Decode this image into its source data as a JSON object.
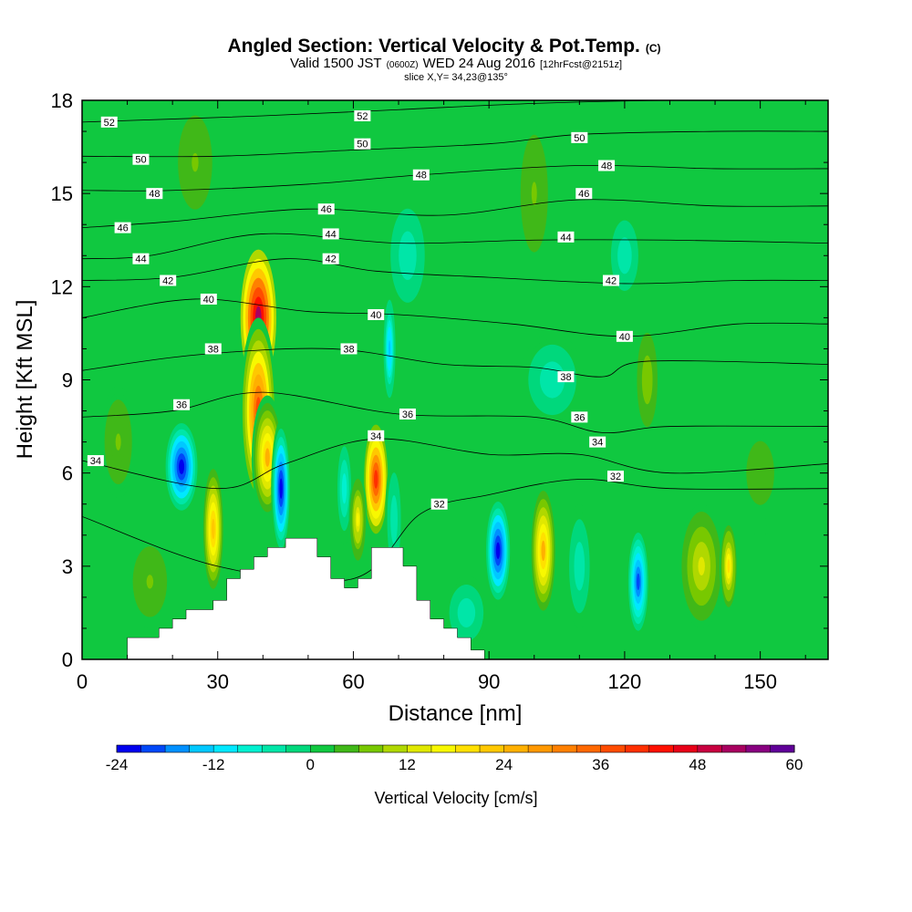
{
  "title": {
    "main": "Angled Section: Vertical Velocity & Pot.Temp.",
    "main_unit": "(C)",
    "valid_a": "Valid 1500 JST",
    "valid_z": "(0600Z)",
    "valid_b": "WED 24 Aug 2016",
    "fcst": "[12hrFcst@2151z]",
    "slice": "slice X,Y= 34,23@135°"
  },
  "chart_data": {
    "type": "heatmap",
    "xlabel": "Distance [nm]",
    "ylabel": "Height [Kft MSL]",
    "xlim": [
      0,
      165
    ],
    "ylim": [
      0,
      18
    ],
    "x_ticks": [
      0,
      30,
      60,
      90,
      120,
      150
    ],
    "y_ticks": [
      0,
      3,
      6,
      9,
      12,
      15,
      18
    ],
    "colorbar": {
      "label": "Vertical Velocity [cm/s]",
      "ticks": [
        -24,
        -12,
        0,
        12,
        24,
        36,
        48,
        60
      ],
      "bounds": [
        -24,
        -21,
        -18,
        -15,
        -12,
        -9,
        -6,
        -3,
        0,
        3,
        6,
        9,
        12,
        15,
        18,
        21,
        24,
        27,
        30,
        33,
        36,
        39,
        42,
        45,
        48,
        51,
        54,
        57,
        60
      ],
      "colors": [
        "#0000ee",
        "#0048f8",
        "#0090ff",
        "#00c8ff",
        "#00e8ff",
        "#00f0d0",
        "#00e6a8",
        "#00d87c",
        "#10c840",
        "#40b818",
        "#78c800",
        "#b0d800",
        "#e0e800",
        "#f8f800",
        "#ffe000",
        "#ffc800",
        "#ffb000",
        "#ff9800",
        "#ff8000",
        "#ff6800",
        "#ff4c00",
        "#ff3000",
        "#ff1000",
        "#e80018",
        "#c80040",
        "#a80060",
        "#880080",
        "#600098"
      ]
    },
    "background_value": 2,
    "vertical_velocity_cells": [
      {
        "x": 22,
        "y": 6.2,
        "value": -24,
        "half_width": 4,
        "half_height": 1.6
      },
      {
        "x": 29,
        "y": 4.2,
        "value": 21,
        "half_width": 2.5,
        "half_height": 2.2
      },
      {
        "x": 39,
        "y": 11,
        "value": 51,
        "half_width": 4.5,
        "half_height": 2.5
      },
      {
        "x": 39,
        "y": 8,
        "value": 36,
        "half_width": 4,
        "half_height": 3
      },
      {
        "x": 41,
        "y": 6.5,
        "value": 24,
        "half_width": 3.5,
        "half_height": 2
      },
      {
        "x": 44,
        "y": 5.5,
        "value": -24,
        "half_width": 2.2,
        "half_height": 2.2
      },
      {
        "x": 58,
        "y": 5.5,
        "value": -9,
        "half_width": 2,
        "half_height": 1.8
      },
      {
        "x": 65,
        "y": 5.8,
        "value": 39,
        "half_width": 3,
        "half_height": 2
      },
      {
        "x": 61,
        "y": 4.5,
        "value": 15,
        "half_width": 2,
        "half_height": 1.5
      },
      {
        "x": 68,
        "y": 10,
        "value": -14,
        "half_width": 1.5,
        "half_height": 1.8
      },
      {
        "x": 69,
        "y": 4.5,
        "value": -6,
        "half_width": 2,
        "half_height": 2
      },
      {
        "x": 92,
        "y": 3.5,
        "value": -24,
        "half_width": 3,
        "half_height": 1.8
      },
      {
        "x": 102,
        "y": 3.5,
        "value": 24,
        "half_width": 3,
        "half_height": 2.2
      },
      {
        "x": 110,
        "y": 3,
        "value": -6,
        "half_width": 3,
        "half_height": 2
      },
      {
        "x": 123,
        "y": 2.5,
        "value": -20,
        "half_width": 2.5,
        "half_height": 1.8
      },
      {
        "x": 137,
        "y": 3,
        "value": 12,
        "half_width": 5,
        "half_height": 2
      },
      {
        "x": 143,
        "y": 3,
        "value": 18,
        "half_width": 2,
        "half_height": 1.5
      },
      {
        "x": 85,
        "y": 1.5,
        "value": -6,
        "half_width": 5,
        "half_height": 1.2
      },
      {
        "x": 104,
        "y": 9,
        "value": -6,
        "half_width": 7,
        "half_height": 1.5
      },
      {
        "x": 120,
        "y": 13,
        "value": -6,
        "half_width": 4,
        "half_height": 1.5
      },
      {
        "x": 72,
        "y": 13,
        "value": -6,
        "half_width": 5,
        "half_height": 2
      },
      {
        "x": 100,
        "y": 15,
        "value": 6,
        "half_width": 4,
        "half_height": 2.5
      },
      {
        "x": 25,
        "y": 16,
        "value": 6,
        "half_width": 5,
        "half_height": 2
      },
      {
        "x": 125,
        "y": 9,
        "value": 8,
        "half_width": 3,
        "half_height": 2
      },
      {
        "x": 15,
        "y": 2.5,
        "value": 6,
        "half_width": 5,
        "half_height": 1.5
      },
      {
        "x": 8,
        "y": 7,
        "value": 6,
        "half_width": 4,
        "half_height": 1.8
      },
      {
        "x": 150,
        "y": 6,
        "value": 4,
        "half_width": 6,
        "half_height": 2
      }
    ],
    "terrain": [
      [
        10,
        0
      ],
      [
        10,
        0.7
      ],
      [
        17,
        0.7
      ],
      [
        17,
        1.0
      ],
      [
        20,
        1.0
      ],
      [
        20,
        1.3
      ],
      [
        23,
        1.3
      ],
      [
        23,
        1.6
      ],
      [
        29,
        1.6
      ],
      [
        29,
        1.9
      ],
      [
        32,
        1.9
      ],
      [
        32,
        2.6
      ],
      [
        35,
        2.6
      ],
      [
        35,
        2.9
      ],
      [
        38,
        2.9
      ],
      [
        38,
        3.3
      ],
      [
        41,
        3.3
      ],
      [
        41,
        3.6
      ],
      [
        45,
        3.6
      ],
      [
        45,
        3.9
      ],
      [
        52,
        3.9
      ],
      [
        52,
        3.3
      ],
      [
        55,
        3.3
      ],
      [
        55,
        2.6
      ],
      [
        58,
        2.6
      ],
      [
        58,
        2.3
      ],
      [
        61,
        2.3
      ],
      [
        61,
        2.6
      ],
      [
        64,
        2.6
      ],
      [
        64,
        3.6
      ],
      [
        71,
        3.6
      ],
      [
        71,
        3.0
      ],
      [
        74,
        3.0
      ],
      [
        74,
        1.9
      ],
      [
        77,
        1.9
      ],
      [
        77,
        1.3
      ],
      [
        80,
        1.3
      ],
      [
        80,
        1.0
      ],
      [
        83,
        1.0
      ],
      [
        83,
        0.7
      ],
      [
        86,
        0.7
      ],
      [
        86,
        0.3
      ],
      [
        89,
        0.3
      ],
      [
        89,
        0
      ]
    ],
    "theta_contours": [
      {
        "level": 32,
        "points": [
          [
            0,
            4.6
          ],
          [
            30,
            3.0
          ],
          [
            60,
            2.6
          ],
          [
            75,
            4.7
          ],
          [
            90,
            5.3
          ],
          [
            110,
            5.8
          ],
          [
            130,
            5.5
          ],
          [
            165,
            5.5
          ]
        ]
      },
      {
        "level": 34,
        "points": [
          [
            0,
            6.4
          ],
          [
            30,
            5.5
          ],
          [
            45,
            6.3
          ],
          [
            65,
            7.1
          ],
          [
            90,
            6.6
          ],
          [
            110,
            6.6
          ],
          [
            130,
            6.0
          ],
          [
            165,
            6.3
          ]
        ]
      },
      {
        "level": 36,
        "points": [
          [
            0,
            7.8
          ],
          [
            20,
            8.0
          ],
          [
            40,
            8.6
          ],
          [
            70,
            7.9
          ],
          [
            100,
            7.8
          ],
          [
            115,
            7.3
          ],
          [
            130,
            7.5
          ],
          [
            165,
            7.5
          ]
        ]
      },
      {
        "level": 38,
        "points": [
          [
            0,
            9.3
          ],
          [
            25,
            9.8
          ],
          [
            55,
            10.0
          ],
          [
            80,
            9.5
          ],
          [
            100,
            9.4
          ],
          [
            115,
            9.1
          ],
          [
            125,
            9.6
          ],
          [
            165,
            9.5
          ]
        ]
      },
      {
        "level": 40,
        "points": [
          [
            0,
            11.0
          ],
          [
            25,
            11.6
          ],
          [
            50,
            11.2
          ],
          [
            70,
            11.1
          ],
          [
            95,
            10.8
          ],
          [
            120,
            10.4
          ],
          [
            145,
            10.8
          ],
          [
            165,
            10.8
          ]
        ]
      },
      {
        "level": 42,
        "points": [
          [
            0,
            12.2
          ],
          [
            20,
            12.3
          ],
          [
            45,
            12.9
          ],
          [
            65,
            12.5
          ],
          [
            90,
            12.3
          ],
          [
            120,
            12.1
          ],
          [
            145,
            12.2
          ],
          [
            165,
            12.2
          ]
        ]
      },
      {
        "level": 44,
        "points": [
          [
            0,
            12.9
          ],
          [
            15,
            13.0
          ],
          [
            40,
            13.7
          ],
          [
            70,
            13.4
          ],
          [
            100,
            13.5
          ],
          [
            130,
            13.5
          ],
          [
            165,
            13.4
          ]
        ]
      },
      {
        "level": 46,
        "points": [
          [
            0,
            13.9
          ],
          [
            20,
            14.1
          ],
          [
            50,
            14.5
          ],
          [
            80,
            14.3
          ],
          [
            110,
            14.8
          ],
          [
            140,
            14.6
          ],
          [
            165,
            14.6
          ]
        ]
      },
      {
        "level": 48,
        "points": [
          [
            0,
            15.1
          ],
          [
            20,
            15.1
          ],
          [
            50,
            15.3
          ],
          [
            75,
            15.6
          ],
          [
            110,
            15.9
          ],
          [
            140,
            15.8
          ],
          [
            165,
            15.8
          ]
        ]
      },
      {
        "level": 50,
        "points": [
          [
            0,
            16.2
          ],
          [
            30,
            16.2
          ],
          [
            60,
            16.4
          ],
          [
            90,
            16.6
          ],
          [
            110,
            16.9
          ],
          [
            140,
            17.0
          ],
          [
            165,
            17.0
          ]
        ]
      },
      {
        "level": 52,
        "points": [
          [
            0,
            17.3
          ],
          [
            40,
            17.5
          ],
          [
            70,
            17.7
          ],
          [
            100,
            17.9
          ],
          [
            130,
            18.0
          ],
          [
            165,
            18.0
          ]
        ]
      }
    ],
    "contour_labels": [
      {
        "text": "52",
        "x": 6,
        "y": 17.3
      },
      {
        "text": "52",
        "x": 62,
        "y": 17.5
      },
      {
        "text": "50",
        "x": 13,
        "y": 16.1
      },
      {
        "text": "50",
        "x": 62,
        "y": 16.6
      },
      {
        "text": "50",
        "x": 110,
        "y": 16.8
      },
      {
        "text": "48",
        "x": 16,
        "y": 15.0
      },
      {
        "text": "48",
        "x": 75,
        "y": 15.6
      },
      {
        "text": "48",
        "x": 116,
        "y": 15.9
      },
      {
        "text": "46",
        "x": 9,
        "y": 13.9
      },
      {
        "text": "46",
        "x": 54,
        "y": 14.5
      },
      {
        "text": "46",
        "x": 111,
        "y": 15.0
      },
      {
        "text": "44",
        "x": 13,
        "y": 12.9
      },
      {
        "text": "44",
        "x": 55,
        "y": 13.7
      },
      {
        "text": "44",
        "x": 107,
        "y": 13.6
      },
      {
        "text": "42",
        "x": 19,
        "y": 12.2
      },
      {
        "text": "42",
        "x": 55,
        "y": 12.9
      },
      {
        "text": "42",
        "x": 117,
        "y": 12.2
      },
      {
        "text": "40",
        "x": 28,
        "y": 11.6
      },
      {
        "text": "40",
        "x": 65,
        "y": 11.1
      },
      {
        "text": "40",
        "x": 120,
        "y": 10.4
      },
      {
        "text": "38",
        "x": 29,
        "y": 10.0
      },
      {
        "text": "38",
        "x": 59,
        "y": 10.0
      },
      {
        "text": "38",
        "x": 107,
        "y": 9.1
      },
      {
        "text": "36",
        "x": 22,
        "y": 8.2
      },
      {
        "text": "36",
        "x": 72,
        "y": 7.9
      },
      {
        "text": "36",
        "x": 110,
        "y": 7.8
      },
      {
        "text": "34",
        "x": 3,
        "y": 6.4
      },
      {
        "text": "34",
        "x": 65,
        "y": 7.2
      },
      {
        "text": "34",
        "x": 114,
        "y": 7.0
      },
      {
        "text": "32",
        "x": 79,
        "y": 5.0
      },
      {
        "text": "32",
        "x": 118,
        "y": 5.9
      }
    ]
  }
}
